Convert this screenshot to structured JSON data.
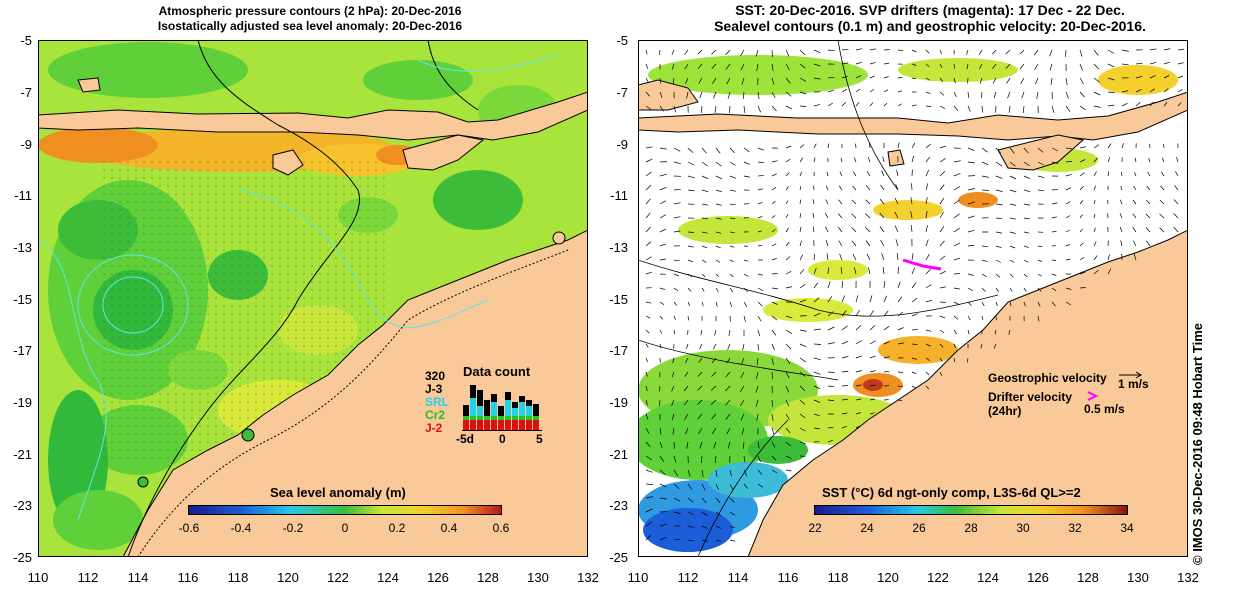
{
  "left_panel": {
    "title_line1": "Atmospheric pressure contours (2 hPa): 20-Dec-2016",
    "title_line2": "Isostatically adjusted sea level anomaly: 20-Dec-2016",
    "y_ticks": [
      "-5",
      "-7",
      "-9",
      "-11",
      "-13",
      "-15",
      "-17",
      "-19",
      "-21",
      "-23",
      "-25"
    ],
    "x_ticks": [
      "110",
      "112",
      "114",
      "116",
      "118",
      "120",
      "122",
      "124",
      "126",
      "128",
      "130",
      "132"
    ],
    "colorbar": {
      "title": "Sea level anomaly (m)",
      "ticks": [
        "-0.6",
        "-0.4",
        "-0.2",
        "0",
        "0.2",
        "0.4",
        "0.6"
      ],
      "range": [
        -0.6,
        0.6
      ]
    },
    "data_count": {
      "title": "Data count",
      "max_label": "320",
      "satellites": [
        "J-3",
        "SRL",
        "Cr2",
        "J-2"
      ],
      "satellite_colors": [
        "#000000",
        "#22d3e8",
        "#22c322",
        "#e01010"
      ],
      "axis_ticks": [
        "-5d",
        "0",
        "5"
      ]
    }
  },
  "right_panel": {
    "title_line1": "SST: 20-Dec-2016. SVP drifters (magenta): 17 Dec - 22 Dec.",
    "title_line2": "Sealevel contours (0.1 m) and geostrophic velocity: 20-Dec-2016.",
    "y_ticks": [
      "-5",
      "-7",
      "-9",
      "-11",
      "-13",
      "-15",
      "-17",
      "-19",
      "-21",
      "-23",
      "-25"
    ],
    "x_ticks": [
      "110",
      "112",
      "114",
      "116",
      "118",
      "120",
      "122",
      "124",
      "126",
      "128",
      "130",
      "132"
    ],
    "colorbar": {
      "title": "SST (°C) 6d ngt-only comp, L3S-6d QL>=2",
      "ticks": [
        "22",
        "24",
        "26",
        "28",
        "30",
        "32",
        "34"
      ],
      "range": [
        22,
        34
      ]
    },
    "legend": {
      "geostrophic_label": "Geostrophic velocity",
      "geostrophic_scale": "1 m/s",
      "drifter_label": "Drifter velocity",
      "drifter_period": "(24hr)",
      "drifter_scale": "0.5 m/s",
      "drifter_color": "#ff00ff"
    }
  },
  "credit": "© IMOS 30-Dec-2016 09:48 Hobart Time",
  "colors": {
    "land": "#f9c99a",
    "ocean_green": "#9ee33a",
    "frame": "#000000"
  }
}
